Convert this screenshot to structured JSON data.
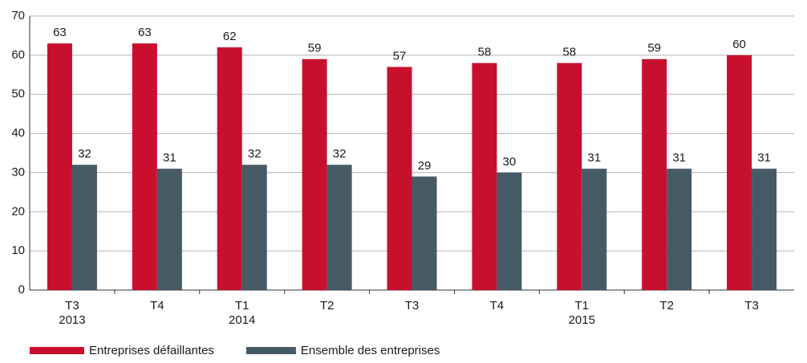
{
  "chart_data": {
    "type": "bar",
    "categories": [
      "T3",
      "T4",
      "T1",
      "T2",
      "T3",
      "T4",
      "T1",
      "T2",
      "T3"
    ],
    "x_sublabels": [
      "2013",
      null,
      "2014",
      null,
      null,
      null,
      "2015",
      null,
      null
    ],
    "series": [
      {
        "name": "Entreprises défaillantes",
        "color": "#c8102e",
        "values": [
          63,
          63,
          62,
          59,
          57,
          58,
          58,
          59,
          60
        ]
      },
      {
        "name": "Ensemble des entreprises",
        "color": "#465a66",
        "values": [
          32,
          31,
          32,
          32,
          29,
          30,
          31,
          31,
          31
        ]
      }
    ],
    "ylim": [
      0,
      70
    ],
    "yticks": [
      0,
      10,
      20,
      30,
      40,
      50,
      60,
      70
    ],
    "grid": true,
    "legend": "bottom"
  }
}
